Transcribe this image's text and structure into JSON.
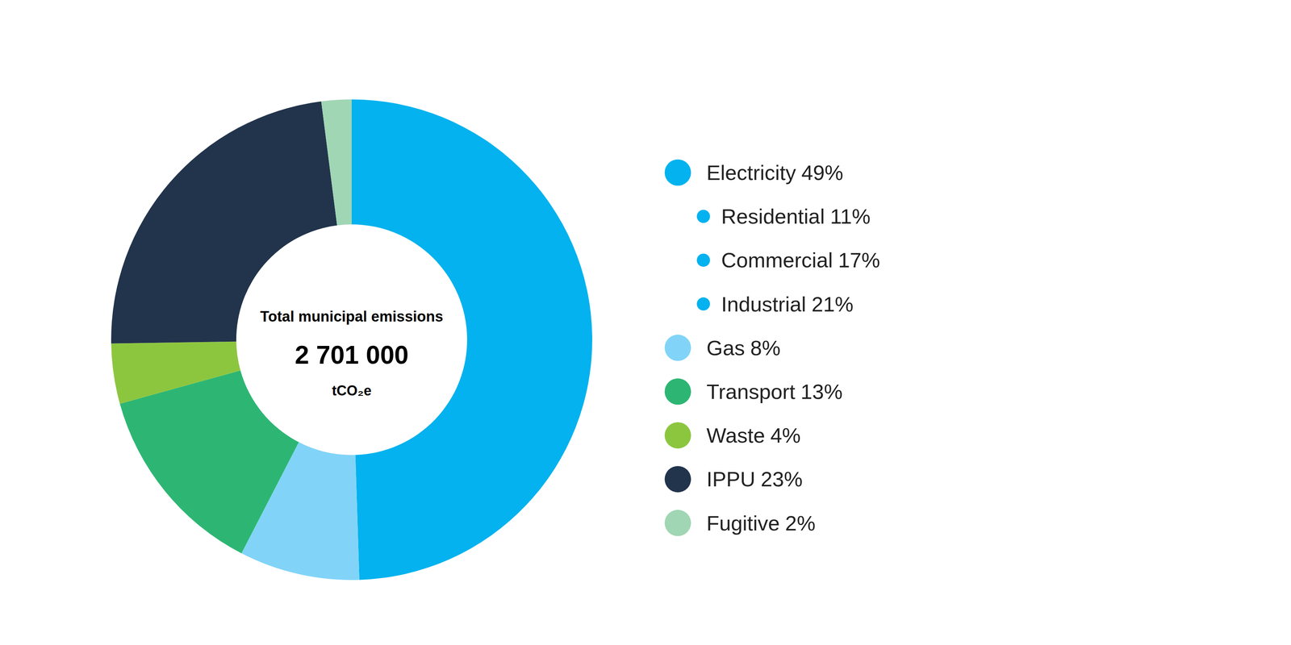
{
  "chart_data": {
    "type": "pie",
    "center_title": "Total municipal emissions",
    "total": {
      "value": 2701000,
      "label": "2 701 000"
    },
    "unit": "tCO₂e",
    "categories": [
      "Electricity",
      "Gas",
      "Transport",
      "Waste",
      "IPPU",
      "Fugitive"
    ],
    "values": [
      49,
      8,
      13,
      4,
      23,
      2
    ],
    "value_labels": [
      "49%",
      "8%",
      "13%",
      "4%",
      "23%",
      "2%"
    ],
    "colors": [
      "#03b2ef",
      "#81d4f8",
      "#2db673",
      "#8cc63f",
      "#22344c",
      "#a0d6b4"
    ],
    "sub_categories": [
      "Residential",
      "Commercial",
      "Industrial"
    ],
    "sub_values": [
      11,
      17,
      21
    ],
    "sub_value_labels": [
      "11%",
      "17%",
      "21%"
    ]
  }
}
